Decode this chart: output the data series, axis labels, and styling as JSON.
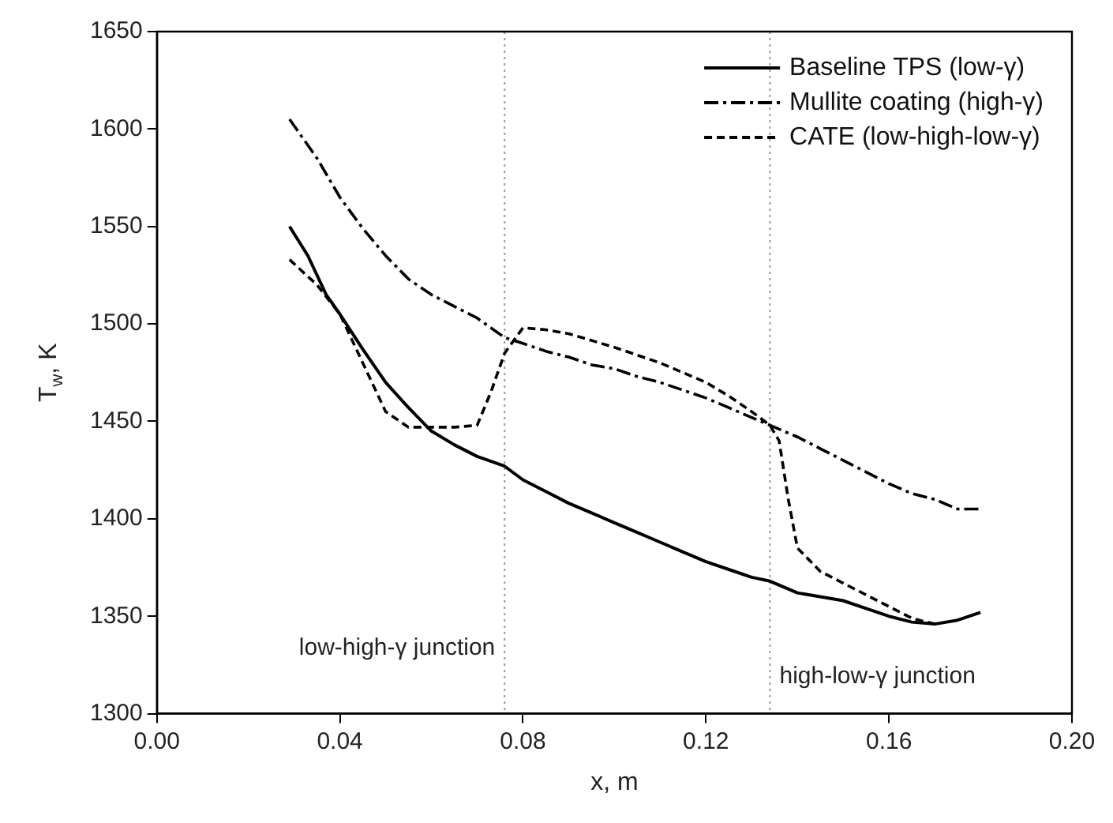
{
  "chart_data": {
    "type": "line",
    "xlabel": "x, m",
    "ylabel": "T$_{w}$, K",
    "xlim": [
      0,
      0.2
    ],
    "xticks": [
      {
        "value": 0,
        "label": "0.00"
      },
      {
        "value": 0.04,
        "label": "0.04"
      },
      {
        "value": 0.08,
        "label": "0.08"
      },
      {
        "value": 0.12,
        "label": "0.12"
      },
      {
        "value": 0.16,
        "label": "0.16"
      },
      {
        "value": 0.2,
        "label": "0.20"
      }
    ],
    "ylim": [
      1300,
      1650
    ],
    "yticks": [
      1300,
      1350,
      1400,
      1450,
      1500,
      1550,
      1600,
      1650
    ],
    "grid": false,
    "legend": "top right",
    "marker": "none",
    "series": [
      {
        "name": "Baseline TPS (low-γ)",
        "color": "#000000",
        "line_style": "solid",
        "x": [
          0.029,
          0.033,
          0.037,
          0.04,
          0.045,
          0.05,
          0.055,
          0.06,
          0.065,
          0.07,
          0.076,
          0.08,
          0.085,
          0.09,
          0.095,
          0.1,
          0.105,
          0.11,
          0.115,
          0.12,
          0.125,
          0.13,
          0.134,
          0.14,
          0.145,
          0.15,
          0.155,
          0.16,
          0.165,
          0.17,
          0.175,
          0.18
        ],
        "values": [
          1550,
          1535,
          1515,
          1505,
          1487,
          1470,
          1457,
          1445,
          1438,
          1432,
          1427,
          1420,
          1414,
          1408,
          1403,
          1398,
          1393,
          1388,
          1383,
          1378,
          1374,
          1370,
          1368,
          1362,
          1360,
          1358,
          1354,
          1350,
          1347,
          1346,
          1348,
          1352
        ]
      },
      {
        "name": "Mullite coating (high-γ)",
        "color": "#000000",
        "line_style": "dashdot",
        "x": [
          0.029,
          0.035,
          0.04,
          0.045,
          0.05,
          0.055,
          0.06,
          0.065,
          0.07,
          0.076,
          0.08,
          0.085,
          0.09,
          0.095,
          0.1,
          0.105,
          0.11,
          0.115,
          0.12,
          0.125,
          0.13,
          0.134,
          0.14,
          0.145,
          0.15,
          0.155,
          0.16,
          0.165,
          0.17,
          0.175,
          0.18
        ],
        "values": [
          1605,
          1585,
          1565,
          1549,
          1535,
          1523,
          1515,
          1509,
          1503,
          1493,
          1490,
          1486,
          1483,
          1479,
          1477,
          1473,
          1470,
          1466,
          1462,
          1457,
          1452,
          1448,
          1442,
          1436,
          1430,
          1424,
          1418,
          1413,
          1410,
          1405,
          1405
        ]
      },
      {
        "name": "CATE (low-high-low-γ)",
        "color": "#000000",
        "line_style": "dashed",
        "x": [
          0.029,
          0.035,
          0.04,
          0.045,
          0.05,
          0.055,
          0.06,
          0.065,
          0.07,
          0.073,
          0.076,
          0.08,
          0.085,
          0.09,
          0.1,
          0.11,
          0.12,
          0.125,
          0.13,
          0.134,
          0.136,
          0.138,
          0.14,
          0.145,
          0.15,
          0.155,
          0.16,
          0.165,
          0.17
        ],
        "values": [
          1533,
          1520,
          1505,
          1480,
          1455,
          1447,
          1447,
          1447,
          1448,
          1465,
          1485,
          1498,
          1497,
          1495,
          1488,
          1480,
          1470,
          1463,
          1455,
          1448,
          1440,
          1410,
          1385,
          1373,
          1367,
          1361,
          1355,
          1349,
          1346
        ]
      }
    ],
    "ref_lines": [
      {
        "axis": "x",
        "value": 0.076,
        "label": "low-high-γ junction",
        "color": "#999999",
        "line_style": "dotted"
      },
      {
        "axis": "x",
        "value": 0.134,
        "label": "high-low-γ junction",
        "color": "#999999",
        "line_style": "dotted"
      }
    ]
  }
}
